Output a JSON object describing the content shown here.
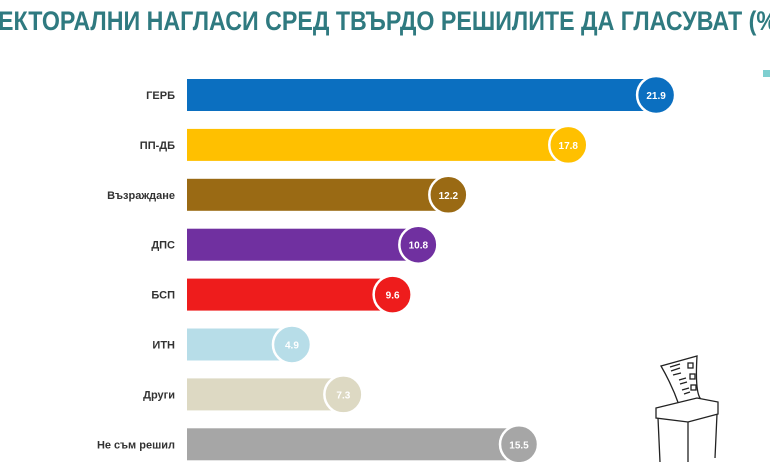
{
  "chart_data": {
    "type": "bar",
    "orientation": "horizontal",
    "title": "ЕКТОРАЛНИ НАГЛАСИ СРЕД ТВЪРДО РЕШИЛИТЕ ДА ГЛАСУВАТ (%",
    "categories": [
      "ГЕРБ",
      "ПП-ДБ",
      "Възраждане",
      "ДПС",
      "БСП",
      "ИТН",
      "Други",
      "Не съм решил"
    ],
    "values": [
      21.9,
      17.8,
      12.2,
      10.8,
      9.6,
      4.9,
      7.3,
      15.5
    ],
    "colors": [
      "#0b6fc0",
      "#ffc000",
      "#9a6a14",
      "#7030a0",
      "#ee1c1c",
      "#b7dde8",
      "#ddd9c3",
      "#a6a6a6"
    ],
    "data_labels": [
      "21.9",
      "17.8",
      "12.2",
      "10.8",
      "9.6",
      "4.9",
      "7.3",
      "15.5"
    ],
    "xlabel": "",
    "ylabel": "",
    "grid": false,
    "legend": "none"
  },
  "decoration_icon": "ballot-box-icon"
}
